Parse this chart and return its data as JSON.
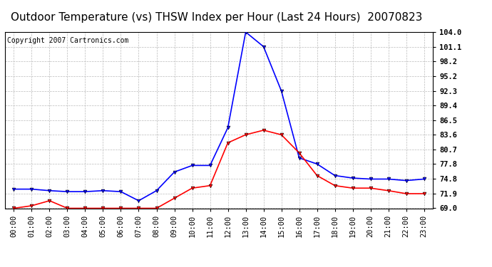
{
  "title": "Outdoor Temperature (vs) THSW Index per Hour (Last 24 Hours)  20070823",
  "copyright": "Copyright 2007 Cartronics.com",
  "hours": [
    "00:00",
    "01:00",
    "02:00",
    "03:00",
    "04:00",
    "05:00",
    "06:00",
    "07:00",
    "08:00",
    "09:00",
    "10:00",
    "11:00",
    "12:00",
    "13:00",
    "14:00",
    "15:00",
    "16:00",
    "17:00",
    "18:00",
    "19:00",
    "20:00",
    "21:00",
    "22:00",
    "23:00"
  ],
  "blue_data": [
    72.8,
    72.8,
    72.5,
    72.3,
    72.3,
    72.5,
    72.3,
    70.5,
    72.5,
    76.2,
    77.5,
    77.5,
    85.0,
    104.0,
    101.1,
    92.3,
    79.0,
    77.8,
    75.5,
    75.0,
    74.8,
    74.8,
    74.5,
    74.8
  ],
  "red_data": [
    69.0,
    69.5,
    70.5,
    69.0,
    69.0,
    69.0,
    69.0,
    69.0,
    69.0,
    71.0,
    73.0,
    73.5,
    82.0,
    83.6,
    84.5,
    83.6,
    80.0,
    75.5,
    73.5,
    73.0,
    73.0,
    72.5,
    71.9,
    71.9
  ],
  "blue_color": "#0000ff",
  "red_color": "#ff0000",
  "bg_color": "#ffffff",
  "grid_color": "#bbbbbb",
  "yticks": [
    69.0,
    71.9,
    74.8,
    77.8,
    80.7,
    83.6,
    86.5,
    89.4,
    92.3,
    95.2,
    98.2,
    101.1,
    104.0
  ],
  "ymin": 69.0,
  "ymax": 104.0,
  "title_fontsize": 11,
  "copyright_fontsize": 7,
  "tick_fontsize": 7.5,
  "marker": "v",
  "marker_size": 3.5,
  "linewidth": 1.2
}
